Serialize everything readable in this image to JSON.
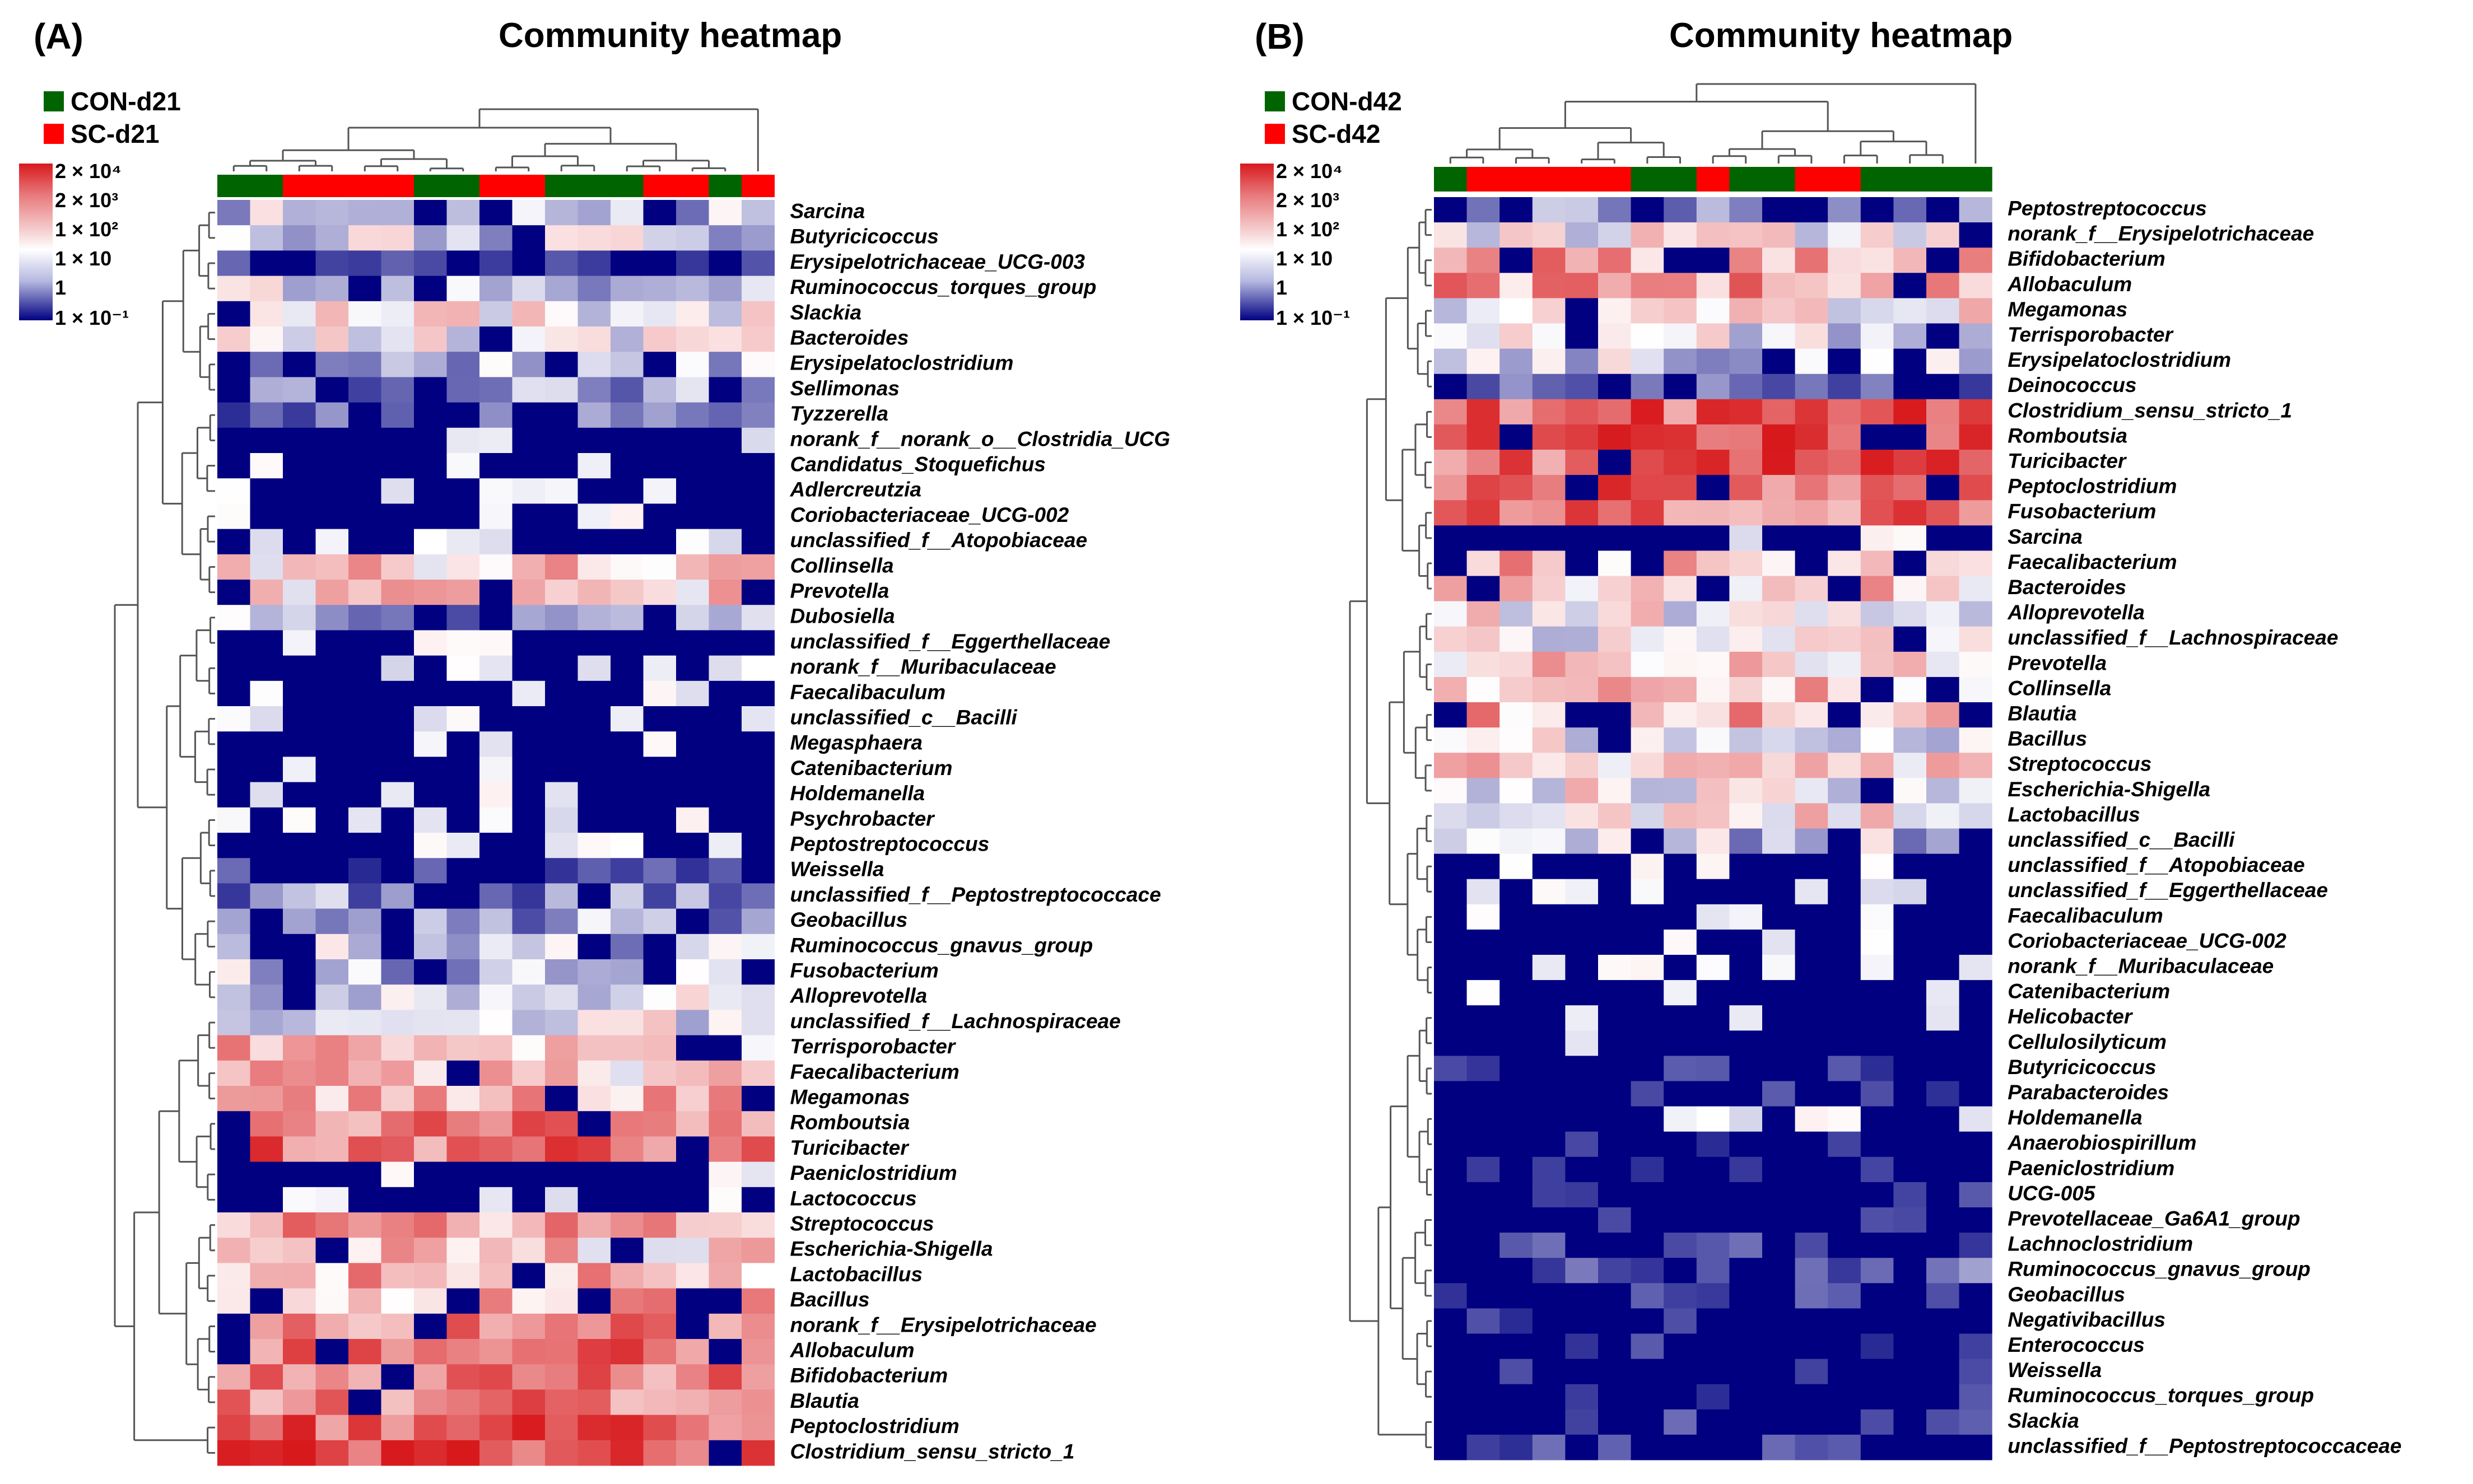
{
  "chart_data": [
    {
      "type": "heatmap",
      "panel_label": "(A)",
      "title": "Community heatmap",
      "groups": [
        {
          "name": "CON-d21",
          "color": "#006400"
        },
        {
          "name": "SC-d21",
          "color": "#ff0000"
        }
      ],
      "colorbar": {
        "labels": [
          "2 × 10⁴",
          "2 × 10³",
          "1 × 10²",
          "1 × 10",
          "1",
          "1 × 10⁻¹"
        ],
        "colors": {
          "high": "#d7191c",
          "mid": "#ffffff",
          "low": "#000080"
        }
      },
      "column_groups": [
        "CON-d21",
        "CON-d21",
        "SC-d21",
        "SC-d21",
        "SC-d21",
        "SC-d21",
        "CON-d21",
        "CON-d21",
        "SC-d21",
        "SC-d21",
        "CON-d21",
        "CON-d21",
        "CON-d21",
        "SC-d21",
        "SC-d21",
        "CON-d21",
        "SC-d21"
      ],
      "rows": [
        "Sarcina",
        "Butyricicoccus",
        "Erysipelotrichaceae_UCG-003",
        "Ruminococcus_torques_group",
        "Slackia",
        "Bacteroides",
        "Erysipelatoclostridium",
        "Sellimonas",
        "Tyzzerella",
        "norank_f__norank_o__Clostridia_UCG",
        "Candidatus_Stoquefichus",
        "Adlercreutzia",
        "Coriobacteriaceae_UCG-002",
        "unclassified_f__Atopobiaceae",
        "Collinsella",
        "Prevotella",
        "Dubosiella",
        "unclassified_f__Eggerthellaceae",
        "norank_f__Muribaculaceae",
        "Faecalibaculum",
        "unclassified_c__Bacilli",
        "Megasphaera",
        "Catenibacterium",
        "Holdemanella",
        "Psychrobacter",
        "Peptostreptococcus",
        "Weissella",
        "unclassified_f__Peptostreptococcace",
        "Geobacillus",
        "Ruminococcus_gnavus_group",
        "Fusobacterium",
        "Alloprevotella",
        "unclassified_f__Lachnospiraceae",
        "Terrisporobacter",
        "Faecalibacterium",
        "Megamonas",
        "Romboutsia",
        "Turicibacter",
        "Paeniclostridium",
        "Lactococcus",
        "Streptococcus",
        "Escherichia-Shigella",
        "Lactobacillus",
        "Bacillus",
        "norank_f__Erysipelotrichaceae",
        "Allobaculum",
        "Bifidobacterium",
        "Blautia",
        "Peptoclostridium",
        "Clostridium_sensu_stricto_1"
      ],
      "row_profiles": [
        0.8,
        1.0,
        -1.0,
        1.0,
        1.5,
        1.2,
        0.8,
        0.4,
        -0.3,
        -2.0,
        -2.0,
        -2.0,
        -2.0,
        -2.0,
        2.0,
        2.0,
        0.5,
        -1.5,
        -2.0,
        -1.5,
        -1.5,
        -1.5,
        -1.5,
        -2.0,
        -2.0,
        -1.5,
        -1.0,
        0.3,
        0.5,
        0.8,
        0.8,
        1.0,
        1.2,
        2.2,
        2.0,
        2.2,
        3.0,
        3.0,
        -2.0,
        -2.0,
        2.5,
        2.0,
        2.3,
        2.2,
        3.0,
        3.0,
        3.0,
        3.0,
        3.3,
        3.5
      ]
    },
    {
      "type": "heatmap",
      "panel_label": "(B)",
      "title": "Community heatmap",
      "groups": [
        {
          "name": "CON-d42",
          "color": "#006400"
        },
        {
          "name": "SC-d42",
          "color": "#ff0000"
        }
      ],
      "colorbar": {
        "labels": [
          "2 × 10⁴",
          "2 × 10³",
          "1 × 10²",
          "1 × 10",
          "1",
          "1 × 10⁻¹"
        ],
        "colors": {
          "high": "#d7191c",
          "mid": "#ffffff",
          "low": "#000080"
        }
      },
      "column_groups": [
        "CON-d42",
        "SC-d42",
        "SC-d42",
        "SC-d42",
        "SC-d42",
        "SC-d42",
        "CON-d42",
        "CON-d42",
        "SC-d42",
        "CON-d42",
        "CON-d42",
        "SC-d42",
        "SC-d42",
        "CON-d42",
        "CON-d42",
        "CON-d42",
        "CON-d42"
      ],
      "rows": [
        "Peptostreptococcus",
        "norank_f__Erysipelotrichaceae",
        "Bifidobacterium",
        "Allobaculum",
        "Megamonas",
        "Terrisporobacter",
        "Erysipelatoclostridium",
        "Deinococcus",
        "Clostridium_sensu_stricto_1",
        "Romboutsia",
        "Turicibacter",
        "Peptoclostridium",
        "Fusobacterium",
        "Sarcina",
        "Faecalibacterium",
        "Bacteroides",
        "Alloprevotella",
        "unclassified_f__Lachnospiraceae",
        "Prevotella",
        "Collinsella",
        "Blautia",
        "Bacillus",
        "Streptococcus",
        "Escherichia-Shigella",
        "Lactobacillus",
        "unclassified_c__Bacilli",
        "unclassified_f__Atopobiaceae",
        "unclassified_f__Eggerthellaceae",
        "Faecalibaculum",
        "Coriobacteriaceae_UCG-002",
        "norank_f__Muribaculaceae",
        "Catenibacterium",
        "Helicobacter",
        "Cellulosilyticum",
        "Butyricicoccus",
        "Parabacteroides",
        "Holdemanella",
        "Anaerobiospirillum",
        "Paeniclostridium",
        "UCG-005",
        "Prevotellaceae_Ga6A1_group",
        "Lachnoclostridium",
        "Ruminococcus_gnavus_group",
        "Geobacillus",
        "Negativibacillus",
        "Enterococcus",
        "Weissella",
        "Ruminococcus_torques_group",
        "Slackia",
        "unclassified_f__Peptostreptococcaceae"
      ],
      "row_profiles": [
        0.0,
        1.5,
        2.5,
        2.5,
        1.5,
        1.2,
        1.0,
        -0.5,
        3.3,
        3.3,
        3.2,
        3.2,
        3.0,
        -1.5,
        2.2,
        2.0,
        1.5,
        1.5,
        2.0,
        2.2,
        2.3,
        1.2,
        2.0,
        1.5,
        1.8,
        0.8,
        -1.5,
        -1.8,
        -1.8,
        -1.8,
        -1.8,
        -1.5,
        -1.5,
        -1.5,
        -1.0,
        -1.2,
        -1.5,
        -1.2,
        -1.0,
        -1.0,
        -1.0,
        -1.0,
        -0.5,
        -1.0,
        -1.2,
        -1.0,
        -1.0,
        -1.2,
        -1.0,
        -1.0
      ]
    }
  ]
}
